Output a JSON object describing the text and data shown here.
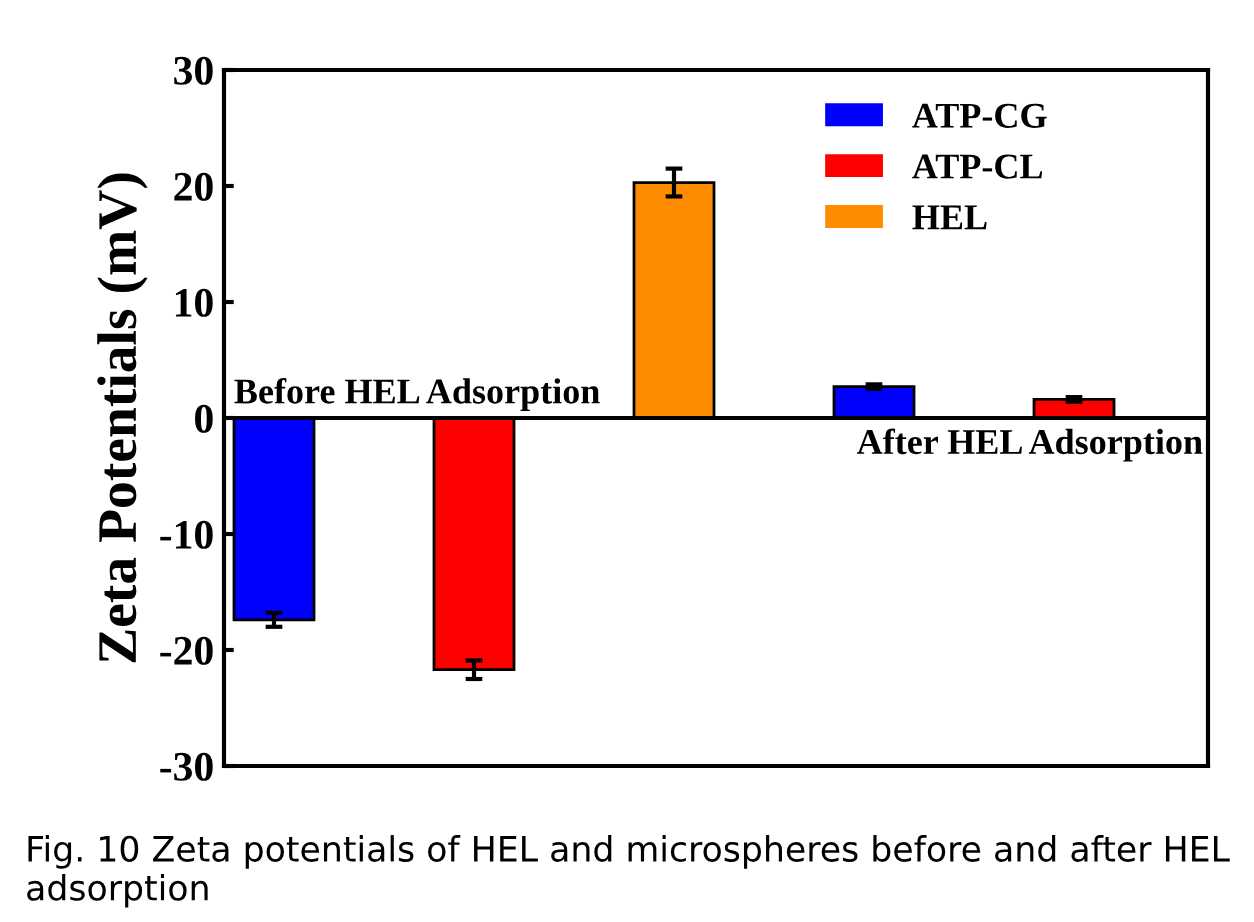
{
  "chart_data": {
    "type": "bar",
    "ylabel": "Zeta Potentials (mV)",
    "categories": [
      null,
      null,
      null,
      null,
      null
    ],
    "series": [
      {
        "name": "ATP-CG",
        "color": "#0000ff",
        "values": [
          -17.4,
          null,
          null,
          2.7,
          null
        ],
        "errors": [
          0.6,
          null,
          null,
          0.2,
          null
        ]
      },
      {
        "name": "ATP-CL",
        "color": "#ff0000",
        "values": [
          null,
          -21.7,
          null,
          null,
          1.6
        ],
        "errors": [
          null,
          0.8,
          null,
          null,
          0.2
        ]
      },
      {
        "name": "HEL",
        "color": "#ff8c00",
        "values": [
          null,
          null,
          20.3,
          null,
          null
        ],
        "errors": [
          null,
          null,
          1.2,
          null,
          null
        ]
      }
    ],
    "ylim": [
      -30,
      30
    ],
    "yticks": [
      -30,
      -20,
      -10,
      0,
      10,
      20,
      30
    ],
    "ref_lines": [
      {
        "axis": "y",
        "value": 0,
        "color": "#000000"
      }
    ],
    "legend": "top right",
    "grid": false,
    "tick_labels": "y",
    "annotations": [
      "Before HEL Adsorption",
      "After HEL Adsorption",
      "Fig. 10 Zeta potentials of HEL and microspheres before and after HEL adsorption"
    ]
  }
}
